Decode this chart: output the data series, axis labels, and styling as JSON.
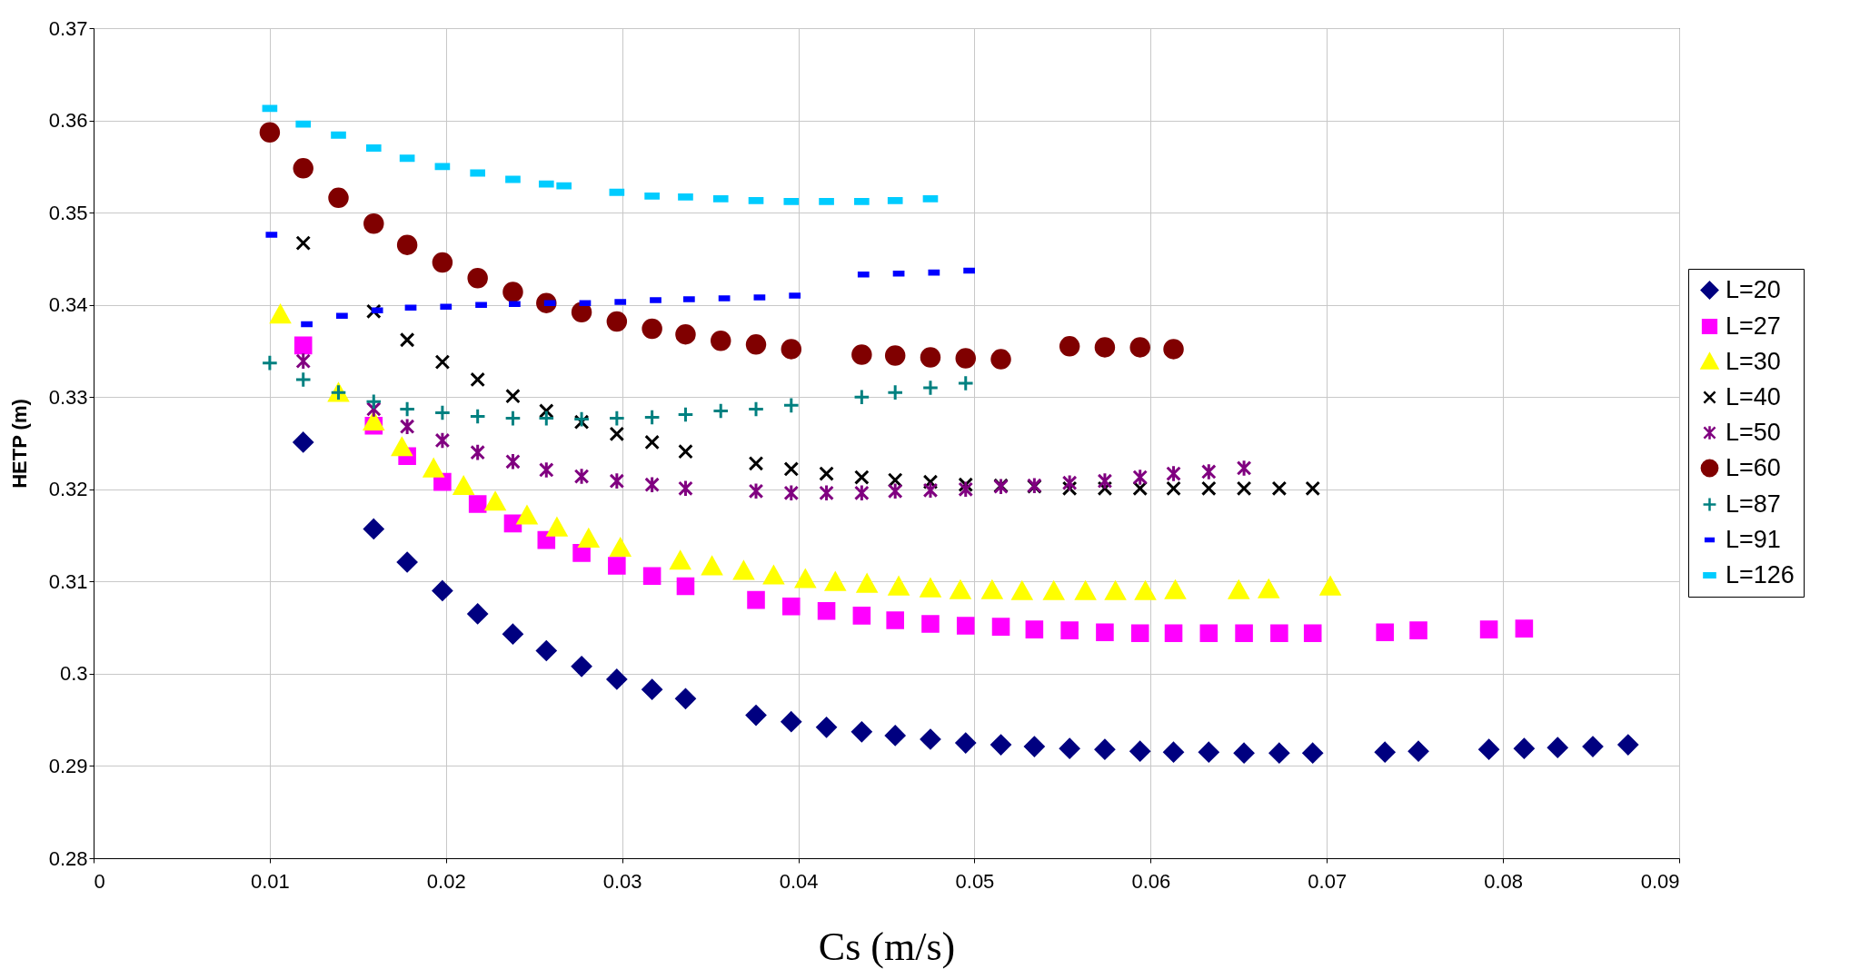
{
  "chart_data": {
    "type": "scatter",
    "xlabel": "Cs (m/s)",
    "ylabel": "HETP (m)",
    "xlim": [
      0,
      0.09
    ],
    "ylim": [
      0.28,
      0.37
    ],
    "xticks": [
      0,
      0.01,
      0.02,
      0.03,
      0.04,
      0.05,
      0.06,
      0.07,
      0.08,
      0.09
    ],
    "yticks": [
      0.28,
      0.29,
      0.3,
      0.31,
      0.32,
      0.33,
      0.34,
      0.35,
      0.36,
      0.37
    ],
    "grid": true,
    "legend": "right",
    "series": [
      {
        "name": "L=20",
        "color": "#000080",
        "x": [
          0.0119,
          0.0159,
          0.0178,
          0.0198,
          0.0218,
          0.0238,
          0.0257,
          0.0277,
          0.0297,
          0.0317,
          0.0336,
          0.0376,
          0.0396,
          0.0416,
          0.0436,
          0.0455,
          0.0475,
          0.0495,
          0.0515,
          0.0534,
          0.0554,
          0.0574,
          0.0594,
          0.0613,
          0.0633,
          0.0653,
          0.0673,
          0.0692,
          0.0733,
          0.0752,
          0.0792,
          0.0812,
          0.0831,
          0.0851,
          0.0871
        ],
        "values": [
          0.3251,
          0.3157,
          0.3121,
          0.309,
          0.3065,
          0.3043,
          0.3025,
          0.3008,
          0.2994,
          0.2983,
          0.2973,
          0.2955,
          0.2948,
          0.2942,
          0.2937,
          0.2933,
          0.2929,
          0.2925,
          0.2923,
          0.2921,
          0.2919,
          0.2918,
          0.2916,
          0.2915,
          0.2915,
          0.2914,
          0.2914,
          0.2914,
          0.2915,
          0.2916,
          0.2918,
          0.2919,
          0.292,
          0.2921,
          0.2923
        ]
      },
      {
        "name": "L=27",
        "color": "#ff00ff",
        "x": [
          0.0119,
          0.0159,
          0.0178,
          0.0198,
          0.0218,
          0.0238,
          0.0257,
          0.0277,
          0.0297,
          0.0317,
          0.0336,
          0.0376,
          0.0396,
          0.0416,
          0.0436,
          0.0455,
          0.0475,
          0.0495,
          0.0515,
          0.0534,
          0.0554,
          0.0574,
          0.0594,
          0.0613,
          0.0633,
          0.0653,
          0.0673,
          0.0692,
          0.0733,
          0.0752,
          0.0792,
          0.0812
        ],
        "values": [
          0.3356,
          0.3269,
          0.3236,
          0.3208,
          0.3184,
          0.3163,
          0.3145,
          0.3131,
          0.3117,
          0.3106,
          0.3095,
          0.308,
          0.3073,
          0.3068,
          0.3063,
          0.3058,
          0.3054,
          0.3052,
          0.3051,
          0.3048,
          0.3047,
          0.3045,
          0.3044,
          0.3044,
          0.3044,
          0.3044,
          0.3044,
          0.3044,
          0.3045,
          0.3047,
          0.3048,
          0.3049
        ]
      },
      {
        "name": "L=30",
        "color": "#ffff00",
        "x": [
          0.0106,
          0.0139,
          0.0159,
          0.0175,
          0.0193,
          0.021,
          0.0228,
          0.0246,
          0.0263,
          0.0281,
          0.0299,
          0.0333,
          0.0351,
          0.0369,
          0.0386,
          0.0404,
          0.0421,
          0.0439,
          0.0457,
          0.0475,
          0.0492,
          0.051,
          0.0527,
          0.0545,
          0.0563,
          0.058,
          0.0597,
          0.0614,
          0.065,
          0.0667,
          0.0702
        ],
        "values": [
          0.3389,
          0.3304,
          0.3273,
          0.3245,
          0.3222,
          0.3203,
          0.3186,
          0.3171,
          0.3158,
          0.3146,
          0.3136,
          0.3122,
          0.3116,
          0.3111,
          0.3106,
          0.3102,
          0.3099,
          0.3097,
          0.3094,
          0.3092,
          0.309,
          0.309,
          0.3089,
          0.3089,
          0.3089,
          0.3089,
          0.3089,
          0.309,
          0.309,
          0.3091,
          0.3094
        ]
      },
      {
        "name": "L=40",
        "color": "#000000",
        "x": [
          0.0119,
          0.0159,
          0.0178,
          0.0198,
          0.0218,
          0.0238,
          0.0257,
          0.0277,
          0.0297,
          0.0317,
          0.0336,
          0.0376,
          0.0396,
          0.0416,
          0.0436,
          0.0455,
          0.0475,
          0.0495,
          0.0515,
          0.0534,
          0.0554,
          0.0574,
          0.0594,
          0.0613,
          0.0633,
          0.0653,
          0.0673,
          0.0692
        ],
        "values": [
          0.3467,
          0.3393,
          0.3362,
          0.3338,
          0.3319,
          0.3301,
          0.3285,
          0.3273,
          0.326,
          0.3251,
          0.3241,
          0.3228,
          0.3222,
          0.3217,
          0.3213,
          0.321,
          0.3208,
          0.3205,
          0.3204,
          0.3203,
          0.3201,
          0.3201,
          0.3201,
          0.3201,
          0.3201,
          0.3201,
          0.3201,
          0.3201
        ]
      },
      {
        "name": "L=50",
        "color": "#800080",
        "x": [
          0.0119,
          0.0159,
          0.0178,
          0.0198,
          0.0218,
          0.0238,
          0.0257,
          0.0277,
          0.0297,
          0.0317,
          0.0336,
          0.0376,
          0.0396,
          0.0416,
          0.0436,
          0.0455,
          0.0475,
          0.0495,
          0.0515,
          0.0534,
          0.0554,
          0.0574,
          0.0594,
          0.0613,
          0.0633,
          0.0653
        ],
        "values": [
          0.3339,
          0.3287,
          0.3268,
          0.3253,
          0.324,
          0.323,
          0.3221,
          0.3214,
          0.3209,
          0.3205,
          0.3201,
          0.3198,
          0.3196,
          0.3196,
          0.3196,
          0.3198,
          0.3199,
          0.32,
          0.3203,
          0.3204,
          0.3207,
          0.3209,
          0.3213,
          0.3217,
          0.3219,
          0.3223
        ]
      },
      {
        "name": "L=60",
        "color": "#800000",
        "x": [
          0.01,
          0.0119,
          0.0139,
          0.0159,
          0.0178,
          0.0198,
          0.0218,
          0.0238,
          0.0257,
          0.0277,
          0.0297,
          0.0317,
          0.0336,
          0.0356,
          0.0376,
          0.0396,
          0.0436,
          0.0455,
          0.0475,
          0.0495,
          0.0515,
          0.0554,
          0.0574,
          0.0594,
          0.0613
        ],
        "values": [
          0.3587,
          0.3548,
          0.3516,
          0.3488,
          0.3465,
          0.3446,
          0.3429,
          0.3414,
          0.3402,
          0.3392,
          0.3382,
          0.3374,
          0.3368,
          0.3361,
          0.3357,
          0.3352,
          0.3346,
          0.3345,
          0.3343,
          0.3342,
          0.3341,
          0.3355,
          0.3354,
          0.3354,
          0.3352
        ]
      },
      {
        "name": "L=87",
        "color": "#008080",
        "x": [
          0.01,
          0.0119,
          0.0139,
          0.0159,
          0.0178,
          0.0198,
          0.0218,
          0.0238,
          0.0257,
          0.0277,
          0.0297,
          0.0317,
          0.0336,
          0.0356,
          0.0376,
          0.0396,
          0.0436,
          0.0455,
          0.0475,
          0.0495
        ],
        "values": [
          0.3337,
          0.3319,
          0.3305,
          0.3295,
          0.3287,
          0.3283,
          0.3279,
          0.3277,
          0.3277,
          0.3276,
          0.3277,
          0.3278,
          0.3281,
          0.3285,
          0.3287,
          0.3291,
          0.33,
          0.3305,
          0.331,
          0.3315
        ]
      },
      {
        "name": "L=91",
        "color": "#0000ff",
        "x": [
          0.0101,
          0.0121,
          0.0141,
          0.0161,
          0.018,
          0.02,
          0.022,
          0.0239,
          0.0259,
          0.0279,
          0.0299,
          0.0319,
          0.0338,
          0.0358,
          0.0378,
          0.0398,
          0.0437,
          0.0457,
          0.0477,
          0.0497
        ],
        "values": [
          0.3476,
          0.3379,
          0.3388,
          0.3394,
          0.3397,
          0.3398,
          0.34,
          0.3401,
          0.3402,
          0.3402,
          0.3403,
          0.3405,
          0.3406,
          0.3407,
          0.3408,
          0.341,
          0.3433,
          0.3434,
          0.3435,
          0.3437
        ]
      },
      {
        "name": "L=126",
        "color": "#00ccff",
        "x": [
          0.01,
          0.0119,
          0.0139,
          0.0159,
          0.0178,
          0.0198,
          0.0218,
          0.0238,
          0.0257,
          0.0267,
          0.0297,
          0.0317,
          0.0336,
          0.0356,
          0.0376,
          0.0396,
          0.0416,
          0.0436,
          0.0455,
          0.0475
        ],
        "values": [
          0.3613,
          0.3596,
          0.3584,
          0.357,
          0.3559,
          0.355,
          0.3543,
          0.3536,
          0.3531,
          0.3529,
          0.3522,
          0.3518,
          0.3517,
          0.3515,
          0.3513,
          0.3512,
          0.3512,
          0.3512,
          0.3513,
          0.3515
        ]
      }
    ]
  }
}
